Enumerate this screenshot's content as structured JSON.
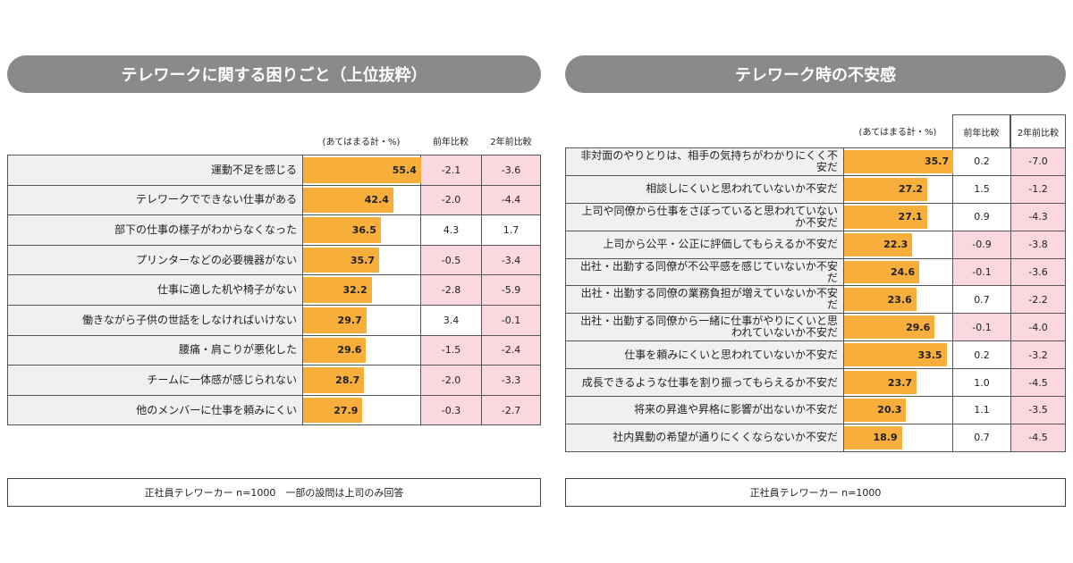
{
  "panels": [
    {
      "title": "テレワークに関する困りごと（上位抜粋）",
      "unit_label": "(あてはまる計・%)",
      "col_prev": "前年比較",
      "col_prev2": "2年前比較",
      "rows": [
        {
          "label": "運動不足を感じる",
          "value": 55.4,
          "prev": "-2.1",
          "prev2": "-3.6"
        },
        {
          "label": "テレワークでできない仕事がある",
          "value": 42.4,
          "prev": "-2.0",
          "prev2": "-4.4"
        },
        {
          "label": "部下の仕事の様子がわからなくなった",
          "value": 36.5,
          "prev": "4.3",
          "prev2": "1.7"
        },
        {
          "label": "プリンターなどの必要機器がない",
          "value": 35.7,
          "prev": "-0.5",
          "prev2": "-3.4"
        },
        {
          "label": "仕事に適した机や椅子がない",
          "value": 32.2,
          "prev": "-2.8",
          "prev2": "-5.9"
        },
        {
          "label": "働きながら子供の世話をしなければいけない",
          "value": 29.7,
          "prev": "3.4",
          "prev2": "-0.1"
        },
        {
          "label": "腰痛・肩こりが悪化した",
          "value": 29.6,
          "prev": "-1.5",
          "prev2": "-2.4"
        },
        {
          "label": "チームに一体感が感じられない",
          "value": 28.7,
          "prev": "-2.0",
          "prev2": "-3.3"
        },
        {
          "label": "他のメンバーに仕事を頼みにくい",
          "value": 27.9,
          "prev": "-0.3",
          "prev2": "-2.7"
        }
      ],
      "footer": "正社員テレワーカー n=1000　一部の設問は上司のみ回答"
    },
    {
      "title": "テレワーク時の不安感",
      "unit_label": "(あてはまる計・%)",
      "col_prev": "前年比較",
      "col_prev2": "2年前比較",
      "rows": [
        {
          "label": "非対面のやりとりは、相手の気持ちがわかりにくく不安だ",
          "value": 35.7,
          "prev": "0.2",
          "prev2": "-7.0"
        },
        {
          "label": "相談しにくいと思われていないか不安だ",
          "value": 27.2,
          "prev": "1.5",
          "prev2": "-1.2"
        },
        {
          "label": "上司や同僚から仕事をさぼっていると思われていないか不安だ",
          "value": 27.1,
          "prev": "0.9",
          "prev2": "-4.3"
        },
        {
          "label": "上司から公平・公正に評価してもらえるか不安だ",
          "value": 22.3,
          "prev": "-0.9",
          "prev2": "-3.8"
        },
        {
          "label": "出社・出勤する同僚が不公平感を感じていないか不安だ",
          "value": 24.6,
          "prev": "-0.1",
          "prev2": "-3.6"
        },
        {
          "label": "出社・出勤する同僚の業務負担が増えていないか不安だ",
          "value": 23.6,
          "prev": "0.7",
          "prev2": "-2.2"
        },
        {
          "label": "出社・出勤する同僚から一緒に仕事がやりにくいと思われていないか不安だ",
          "value": 29.6,
          "prev": "-0.1",
          "prev2": "-4.0"
        },
        {
          "label": "仕事を頼みにくいと思われていないか不安だ",
          "value": 33.5,
          "prev": "0.2",
          "prev2": "-3.2"
        },
        {
          "label": "成長できるような仕事を割り振ってもらえるか不安だ",
          "value": 23.7,
          "prev": "1.0",
          "prev2": "-4.5"
        },
        {
          "label": "将来の昇進や昇格に影響が出ないか不安だ",
          "value": 20.3,
          "prev": "1.1",
          "prev2": "-3.5"
        },
        {
          "label": "社内異動の希望が通りにくくならないか不安だ",
          "value": 18.9,
          "prev": "0.7",
          "prev2": "-4.5"
        }
      ],
      "footer": "正社員テレワーカー n=1000"
    }
  ]
}
